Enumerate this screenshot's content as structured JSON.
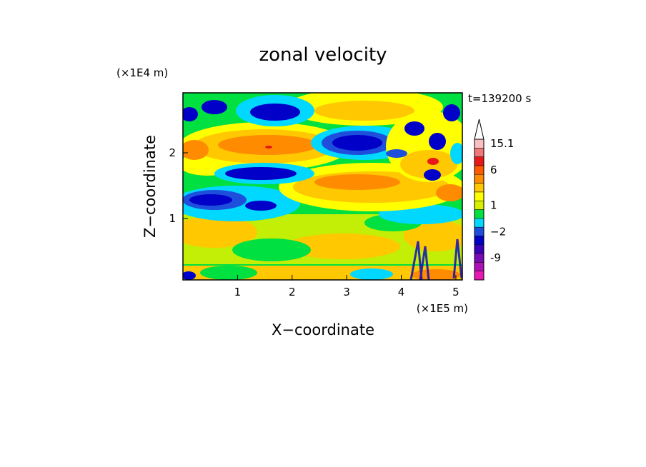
{
  "chart_data": {
    "type": "heatmap",
    "title": "zonal velocity",
    "xlabel": "X−coordinate",
    "ylabel": "Z−coordinate",
    "x_multiplier": "(×1E5 m)",
    "y_multiplier": "(×1E4 m)",
    "time_label": "t=139200 s",
    "xlim": [
      0,
      5.12
    ],
    "ylim": [
      0,
      2.85
    ],
    "x_ticks": [
      1,
      2,
      3,
      4,
      5
    ],
    "y_ticks": [
      1,
      2
    ],
    "x_tick_labels": [
      "1",
      "2",
      "3",
      "4",
      "5"
    ],
    "y_tick_labels": [
      "1",
      "2"
    ],
    "colorbar": {
      "levels": [
        {
          "label": "",
          "color": "#e818b0"
        },
        {
          "label": "",
          "color": "#b010b8"
        },
        {
          "label": "-9",
          "color": "#7a0ab8"
        },
        {
          "label": "",
          "color": "#3c00b8"
        },
        {
          "label": "",
          "color": "#0000c8"
        },
        {
          "label": "−2",
          "color": "#1d4fdc"
        },
        {
          "label": "",
          "color": "#00d8ff"
        },
        {
          "label": "",
          "color": "#00e040"
        },
        {
          "label": "1",
          "color": "#d8f000"
        },
        {
          "label": "",
          "color": "#ffff00"
        },
        {
          "label": "",
          "color": "#ffc800"
        },
        {
          "label": "",
          "color": "#ff8c00"
        },
        {
          "label": "6",
          "color": "#ff5a00"
        },
        {
          "label": "",
          "color": "#e81818"
        },
        {
          "label": "",
          "color": "#f07878"
        },
        {
          "label": "15.1",
          "color": "#f8c0c0"
        }
      ],
      "over_color": "#ffffff"
    },
    "field_bands": [
      {
        "name": "bottom",
        "z_range": [
          0,
          0.35
        ],
        "dominant": [
          "green",
          "yellow",
          "orange"
        ]
      },
      {
        "name": "lower",
        "z_range": [
          0.35,
          1.0
        ],
        "dominant": [
          "green",
          "yellow",
          "orange"
        ]
      },
      {
        "name": "negative-jet-low",
        "z_range": [
          0.9,
          1.4
        ],
        "dominant": [
          "blue",
          "cyan"
        ]
      },
      {
        "name": "positive-jet-mid",
        "z_range": [
          1.4,
          2.3
        ],
        "dominant": [
          "orange",
          "yellow"
        ]
      },
      {
        "name": "negative-jet-high",
        "z_range": [
          1.6,
          2.4
        ],
        "dominant": [
          "blue",
          "cyan"
        ]
      },
      {
        "name": "upper",
        "z_range": [
          2.3,
          2.85
        ],
        "dominant": [
          "yellow",
          "orange",
          "blue"
        ]
      }
    ]
  }
}
